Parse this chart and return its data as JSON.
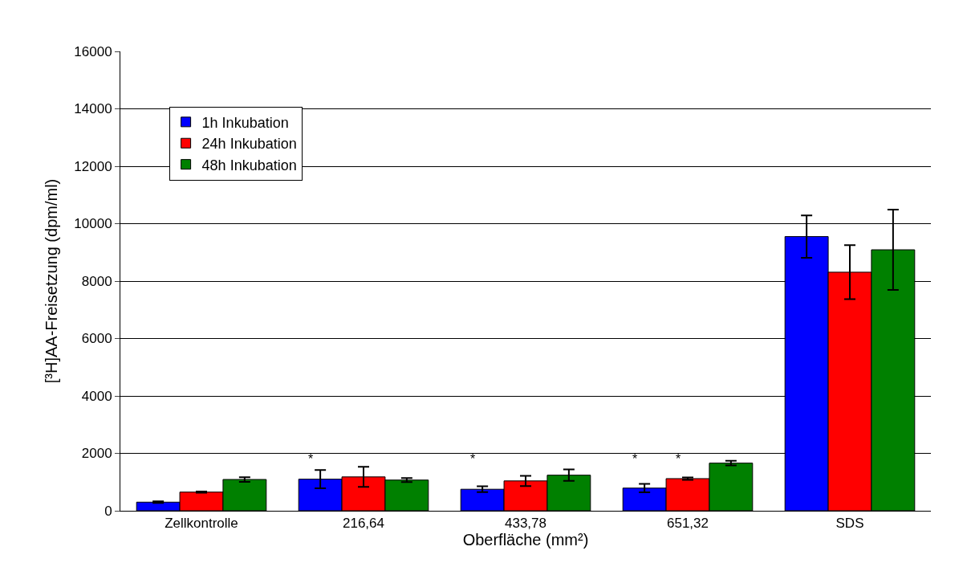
{
  "chart_data": {
    "type": "bar",
    "xlabel": "Oberfläche (mm²)",
    "ylabel": "[³H]AA-Freisetzung (dpm/ml)",
    "categories": [
      "Zellkontrolle",
      "216,64",
      "433,78",
      "651,32",
      "SDS"
    ],
    "series": [
      {
        "name": "1h Inkubation",
        "color": "#0000ff",
        "values": [
          300,
          1100,
          750,
          790,
          9550
        ],
        "errors": [
          30,
          320,
          100,
          150,
          740
        ]
      },
      {
        "name": "24h Inkubation",
        "color": "#ff0000",
        "values": [
          650,
          1180,
          1040,
          1120,
          8310
        ],
        "errors": [
          20,
          350,
          180,
          40,
          940
        ]
      },
      {
        "name": "48h Inkubation",
        "color": "#008000",
        "values": [
          1090,
          1070,
          1240,
          1660,
          9090
        ],
        "errors": [
          80,
          70,
          200,
          80,
          1400
        ]
      }
    ],
    "ylim": [
      0,
      16000
    ],
    "yticks": [
      0,
      2000,
      4000,
      6000,
      8000,
      10000,
      12000,
      14000,
      16000
    ],
    "grid": "y",
    "legend": "top left",
    "annotations": [
      "*",
      "*",
      "*",
      "*"
    ]
  }
}
